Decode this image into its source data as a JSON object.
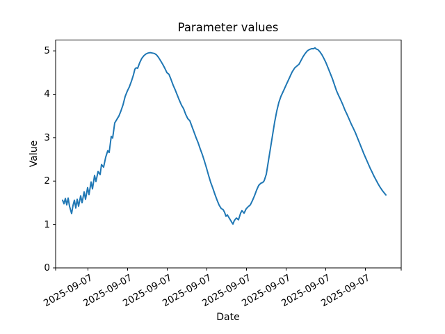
{
  "chart_data": {
    "type": "line",
    "title": "Parameter values",
    "xlabel": "Date",
    "ylabel": "Value",
    "x_tick_labels": [
      "2025-09-07",
      "2025-09-07",
      "2025-09-07",
      "2025-09-07",
      "2025-09-07",
      "2025-09-07",
      "2025-09-07",
      "2025-09-07"
    ],
    "x_ticks": [
      0,
      1,
      2,
      3,
      4,
      5,
      6,
      7
    ],
    "y_ticks": [
      0,
      1,
      2,
      3,
      4,
      5
    ],
    "y_tick_labels": [
      "0",
      "1",
      "2",
      "3",
      "4",
      "5"
    ],
    "xlim": [
      -0.816,
      7.904
    ],
    "ylim": [
      0,
      5.25
    ],
    "x_unit": "tick-index",
    "grid": false,
    "legend": false,
    "edge_ticks_at_plot_corners": true,
    "colors": {
      "line": "#1f77b4",
      "axis": "#000000",
      "background": "#ffffff"
    },
    "series": [
      {
        "name": "Parameter",
        "color": "#1f77b4",
        "points": [
          [
            -0.64,
            1.56
          ],
          [
            -0.605,
            1.48
          ],
          [
            -0.57,
            1.6
          ],
          [
            -0.535,
            1.45
          ],
          [
            -0.5,
            1.61
          ],
          [
            -0.465,
            1.42
          ],
          [
            -0.412,
            1.25
          ],
          [
            -0.377,
            1.44
          ],
          [
            -0.342,
            1.56
          ],
          [
            -0.307,
            1.38
          ],
          [
            -0.272,
            1.58
          ],
          [
            -0.237,
            1.42
          ],
          [
            -0.184,
            1.66
          ],
          [
            -0.149,
            1.5
          ],
          [
            -0.096,
            1.75
          ],
          [
            -0.061,
            1.58
          ],
          [
            -0.009,
            1.85
          ],
          [
            0.026,
            1.69
          ],
          [
            0.079,
            1.98
          ],
          [
            0.114,
            1.82
          ],
          [
            0.167,
            2.13
          ],
          [
            0.202,
            1.99
          ],
          [
            0.254,
            2.22
          ],
          [
            0.307,
            2.15
          ],
          [
            0.342,
            2.38
          ],
          [
            0.395,
            2.32
          ],
          [
            0.447,
            2.55
          ],
          [
            0.5,
            2.7
          ],
          [
            0.535,
            2.66
          ],
          [
            0.588,
            3.03
          ],
          [
            0.623,
            2.99
          ],
          [
            0.675,
            3.34
          ],
          [
            0.728,
            3.42
          ],
          [
            0.781,
            3.5
          ],
          [
            0.833,
            3.62
          ],
          [
            0.886,
            3.76
          ],
          [
            0.939,
            3.95
          ],
          [
            0.991,
            4.07
          ],
          [
            1.044,
            4.17
          ],
          [
            1.096,
            4.3
          ],
          [
            1.149,
            4.45
          ],
          [
            1.184,
            4.58
          ],
          [
            1.219,
            4.61
          ],
          [
            1.254,
            4.6
          ],
          [
            1.307,
            4.73
          ],
          [
            1.36,
            4.83
          ],
          [
            1.412,
            4.89
          ],
          [
            1.465,
            4.93
          ],
          [
            1.518,
            4.95
          ],
          [
            1.57,
            4.96
          ],
          [
            1.623,
            4.95
          ],
          [
            1.675,
            4.94
          ],
          [
            1.728,
            4.91
          ],
          [
            1.781,
            4.85
          ],
          [
            1.833,
            4.77
          ],
          [
            1.886,
            4.69
          ],
          [
            1.939,
            4.6
          ],
          [
            1.991,
            4.5
          ],
          [
            2.044,
            4.46
          ],
          [
            2.096,
            4.34
          ],
          [
            2.149,
            4.21
          ],
          [
            2.202,
            4.1
          ],
          [
            2.254,
            3.98
          ],
          [
            2.307,
            3.86
          ],
          [
            2.36,
            3.75
          ],
          [
            2.412,
            3.67
          ],
          [
            2.465,
            3.54
          ],
          [
            2.518,
            3.44
          ],
          [
            2.57,
            3.39
          ],
          [
            2.623,
            3.26
          ],
          [
            2.675,
            3.13
          ],
          [
            2.728,
            3.0
          ],
          [
            2.781,
            2.88
          ],
          [
            2.833,
            2.74
          ],
          [
            2.886,
            2.61
          ],
          [
            2.939,
            2.46
          ],
          [
            2.991,
            2.3
          ],
          [
            3.044,
            2.13
          ],
          [
            3.096,
            1.97
          ],
          [
            3.149,
            1.84
          ],
          [
            3.202,
            1.7
          ],
          [
            3.254,
            1.57
          ],
          [
            3.307,
            1.45
          ],
          [
            3.36,
            1.37
          ],
          [
            3.412,
            1.34
          ],
          [
            3.447,
            1.28
          ],
          [
            3.482,
            1.19
          ],
          [
            3.518,
            1.22
          ],
          [
            3.57,
            1.14
          ],
          [
            3.623,
            1.06
          ],
          [
            3.658,
            1.01
          ],
          [
            3.693,
            1.09
          ],
          [
            3.746,
            1.15
          ],
          [
            3.798,
            1.11
          ],
          [
            3.851,
            1.26
          ],
          [
            3.886,
            1.32
          ],
          [
            3.939,
            1.26
          ],
          [
            3.991,
            1.36
          ],
          [
            4.044,
            1.41
          ],
          [
            4.096,
            1.45
          ],
          [
            4.149,
            1.55
          ],
          [
            4.202,
            1.66
          ],
          [
            4.254,
            1.79
          ],
          [
            4.307,
            1.9
          ],
          [
            4.36,
            1.95
          ],
          [
            4.412,
            1.97
          ],
          [
            4.447,
            2.01
          ],
          [
            4.5,
            2.16
          ],
          [
            4.553,
            2.46
          ],
          [
            4.605,
            2.76
          ],
          [
            4.658,
            3.06
          ],
          [
            4.711,
            3.36
          ],
          [
            4.763,
            3.61
          ],
          [
            4.816,
            3.81
          ],
          [
            4.868,
            3.95
          ],
          [
            4.939,
            4.09
          ],
          [
            5.009,
            4.23
          ],
          [
            5.079,
            4.37
          ],
          [
            5.149,
            4.51
          ],
          [
            5.219,
            4.61
          ],
          [
            5.272,
            4.65
          ],
          [
            5.325,
            4.69
          ],
          [
            5.377,
            4.78
          ],
          [
            5.43,
            4.87
          ],
          [
            5.482,
            4.94
          ],
          [
            5.535,
            5.0
          ],
          [
            5.588,
            5.03
          ],
          [
            5.64,
            5.05
          ],
          [
            5.693,
            5.05
          ],
          [
            5.728,
            5.07
          ],
          [
            5.763,
            5.04
          ],
          [
            5.798,
            5.03
          ],
          [
            5.851,
            4.98
          ],
          [
            5.904,
            4.91
          ],
          [
            5.956,
            4.82
          ],
          [
            6.009,
            4.72
          ],
          [
            6.061,
            4.6
          ],
          [
            6.114,
            4.48
          ],
          [
            6.167,
            4.36
          ],
          [
            6.219,
            4.22
          ],
          [
            6.272,
            4.08
          ],
          [
            6.325,
            3.97
          ],
          [
            6.377,
            3.87
          ],
          [
            6.43,
            3.76
          ],
          [
            6.482,
            3.64
          ],
          [
            6.535,
            3.54
          ],
          [
            6.588,
            3.43
          ],
          [
            6.64,
            3.32
          ],
          [
            6.693,
            3.22
          ],
          [
            6.746,
            3.12
          ],
          [
            6.798,
            3.0
          ],
          [
            6.851,
            2.88
          ],
          [
            6.904,
            2.76
          ],
          [
            6.956,
            2.64
          ],
          [
            7.009,
            2.53
          ],
          [
            7.061,
            2.42
          ],
          [
            7.114,
            2.31
          ],
          [
            7.167,
            2.21
          ],
          [
            7.219,
            2.11
          ],
          [
            7.272,
            2.02
          ],
          [
            7.325,
            1.93
          ],
          [
            7.377,
            1.85
          ],
          [
            7.43,
            1.78
          ],
          [
            7.465,
            1.74
          ],
          [
            7.5,
            1.7
          ],
          [
            7.518,
            1.68
          ]
        ]
      }
    ]
  }
}
